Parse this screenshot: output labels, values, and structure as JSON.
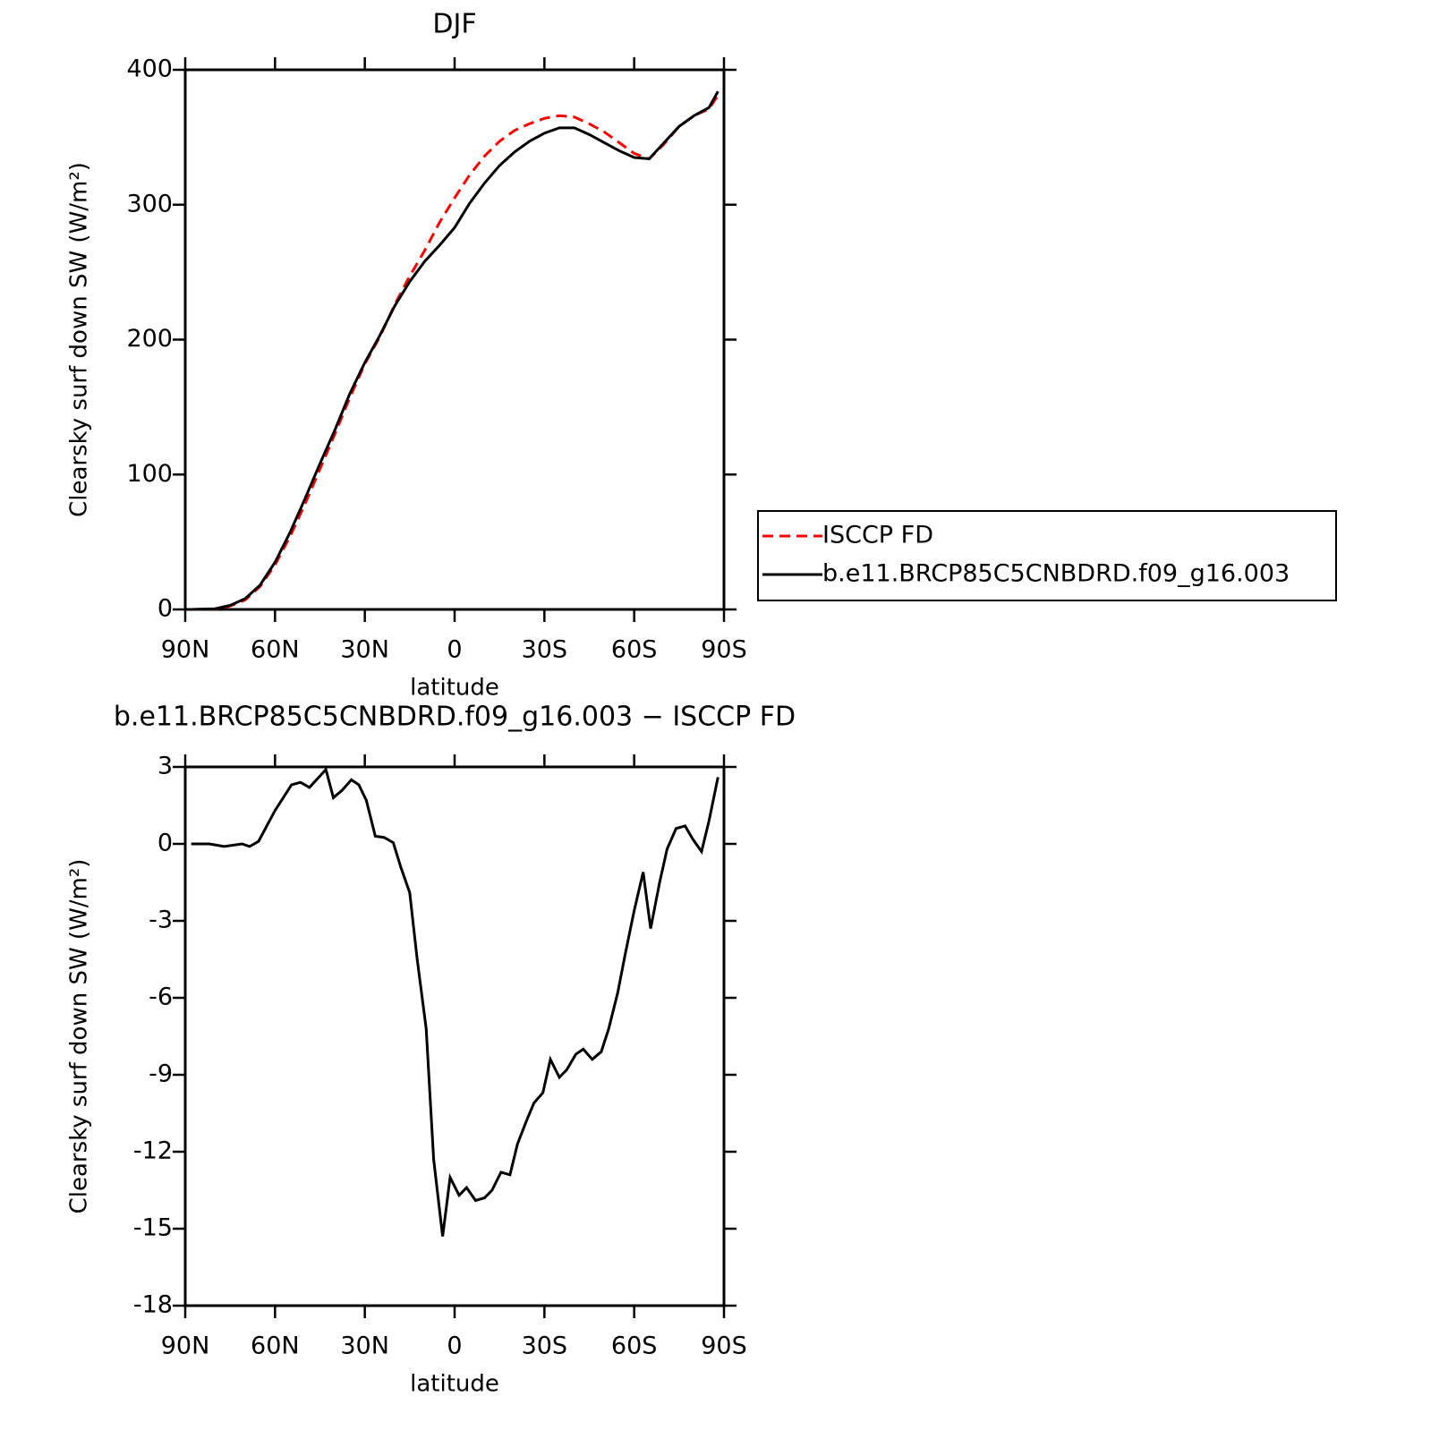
{
  "chart_data": [
    {
      "type": "line",
      "title": "DJF",
      "x_label": "latitude",
      "y_label": "Clearsky surf down SW (W/m²)",
      "x": [
        88,
        80,
        75,
        70,
        65,
        60,
        55,
        50,
        45,
        40,
        35,
        30,
        25,
        20,
        15,
        10,
        5,
        0,
        -5,
        -10,
        -15,
        -20,
        -25,
        -30,
        -35,
        -40,
        -45,
        -50,
        -55,
        -60,
        -65,
        -70,
        -75,
        -80,
        -85,
        -88
      ],
      "series": [
        {
          "name": "ISCCP FD",
          "color": "#ff0000",
          "linestyle": "dashed",
          "values": [
            0,
            0.3,
            2.5,
            7,
            17,
            33,
            54,
            78,
            104,
            130,
            157,
            182,
            202,
            226,
            247,
            266,
            287,
            305,
            322,
            336,
            347,
            355,
            360,
            364,
            366,
            365,
            360,
            354,
            346,
            338,
            334,
            345,
            358,
            366,
            371,
            381
          ]
        },
        {
          "name": "b.e11.BRCP85C5CNBDRD.f09_g16.003",
          "color": "#000000",
          "linestyle": "solid",
          "values": [
            0,
            0.5,
            3,
            8,
            18,
            35,
            57,
            82,
            108,
            133,
            160,
            183,
            203,
            225,
            243,
            258,
            270,
            283,
            301,
            316,
            329,
            339,
            347,
            353,
            357,
            357,
            352,
            346,
            340,
            335,
            334,
            346,
            358,
            366,
            372,
            384
          ]
        }
      ],
      "xlim": [
        90,
        -90
      ],
      "xticks": [
        {
          "value": 90,
          "label": "90N"
        },
        {
          "value": 60,
          "label": "60N"
        },
        {
          "value": 30,
          "label": "30N"
        },
        0,
        {
          "value": -30,
          "label": "30S"
        },
        {
          "value": -60,
          "label": "60S"
        },
        {
          "value": -90,
          "label": "90S"
        }
      ],
      "ylim": [
        0,
        400
      ],
      "yticks": [
        0,
        100,
        200,
        300,
        400
      ],
      "legend": "outside right"
    },
    {
      "type": "line",
      "title": "b.e11.BRCP85C5CNBDRD.f09_g16.003 − ISCCP FD",
      "x_label": "latitude",
      "y_label": "Clearsky surf down SW (W/m²)",
      "x": [
        88,
        82,
        77,
        71,
        68.5,
        65.5,
        60,
        54.5,
        51.5,
        48.5,
        43,
        40.5,
        37.5,
        34.5,
        32,
        29.5,
        26.5,
        23.5,
        20.5,
        18,
        15,
        12.5,
        9.5,
        7,
        4,
        1.5,
        -1.5,
        -4,
        -7,
        -10,
        -12.5,
        -15.5,
        -18.5,
        -21,
        -24,
        -26.5,
        -29.5,
        -32,
        -35,
        -37.5,
        -40.5,
        -43,
        -46,
        -49,
        -51.5,
        -54.5,
        -57,
        -60,
        -63,
        -65.5,
        -68.5,
        -71,
        -74,
        -77,
        -79.5,
        -82.5,
        -85,
        -88
      ],
      "series": [
        {
          "color": "#000000",
          "linestyle": "solid",
          "values": [
            0,
            0,
            -0.1,
            0,
            -0.1,
            0.1,
            1.3,
            2.3,
            2.4,
            2.2,
            2.9,
            1.8,
            2.1,
            2.5,
            2.3,
            1.7,
            0.3,
            0.25,
            0.05,
            -0.9,
            -1.9,
            -4.5,
            -7.2,
            -12.3,
            -15.3,
            -13.0,
            -13.7,
            -13.4,
            -13.9,
            -13.8,
            -13.5,
            -12.8,
            -12.9,
            -11.7,
            -10.8,
            -10.1,
            -9.7,
            -8.4,
            -9.1,
            -8.8,
            -8.2,
            -8.0,
            -8.4,
            -8.1,
            -7.2,
            -5.8,
            -4.3,
            -2.6,
            -1.1,
            -3.3,
            -1.5,
            -0.2,
            0.6,
            0.7,
            0.2,
            -0.3,
            0.9,
            2.6
          ]
        }
      ],
      "xlim": [
        90,
        -90
      ],
      "xticks": [
        {
          "value": 90,
          "label": "90N"
        },
        {
          "value": 60,
          "label": "60N"
        },
        {
          "value": 30,
          "label": "30N"
        },
        0,
        {
          "value": -30,
          "label": "30S"
        },
        {
          "value": -60,
          "label": "60S"
        },
        {
          "value": -90,
          "label": "90S"
        }
      ],
      "ylim": [
        -18,
        3
      ],
      "yticks": [
        -18,
        -15,
        -12,
        -9,
        -6,
        -3,
        0,
        3
      ]
    }
  ]
}
